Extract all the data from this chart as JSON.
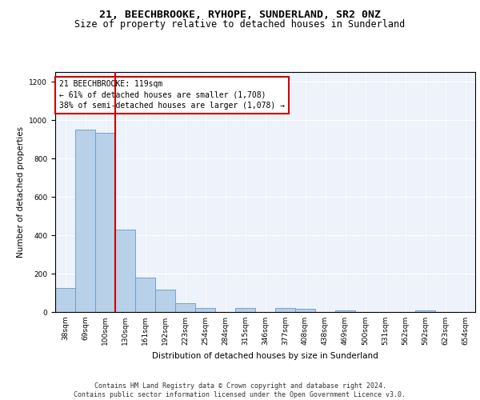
{
  "title": "21, BEECHBROOKE, RYHOPE, SUNDERLAND, SR2 0NZ",
  "subtitle": "Size of property relative to detached houses in Sunderland",
  "xlabel": "Distribution of detached houses by size in Sunderland",
  "ylabel": "Number of detached properties",
  "categories": [
    "38sqm",
    "69sqm",
    "100sqm",
    "130sqm",
    "161sqm",
    "192sqm",
    "223sqm",
    "254sqm",
    "284sqm",
    "315sqm",
    "346sqm",
    "377sqm",
    "408sqm",
    "438sqm",
    "469sqm",
    "500sqm",
    "531sqm",
    "562sqm",
    "592sqm",
    "623sqm",
    "654sqm"
  ],
  "values": [
    125,
    950,
    935,
    430,
    180,
    115,
    45,
    20,
    0,
    20,
    0,
    20,
    15,
    0,
    10,
    0,
    0,
    0,
    10,
    0,
    0
  ],
  "bar_color": "#b8d0e8",
  "bar_edge_color": "#6699cc",
  "highlight_color": "#cc0000",
  "annotation_text": "21 BEECHBROOKE: 119sqm\n← 61% of detached houses are smaller (1,708)\n38% of semi-detached houses are larger (1,078) →",
  "annotation_edge_color": "#cc0000",
  "ylim": [
    0,
    1250
  ],
  "yticks": [
    0,
    200,
    400,
    600,
    800,
    1000,
    1200
  ],
  "background_color": "#eef2fa",
  "footer_text": "Contains HM Land Registry data © Crown copyright and database right 2024.\nContains public sector information licensed under the Open Government Licence v3.0.",
  "title_fontsize": 9.5,
  "subtitle_fontsize": 8.5,
  "axis_label_fontsize": 7.5,
  "tick_fontsize": 6.5,
  "annotation_fontsize": 7.0,
  "footer_fontsize": 6.0
}
